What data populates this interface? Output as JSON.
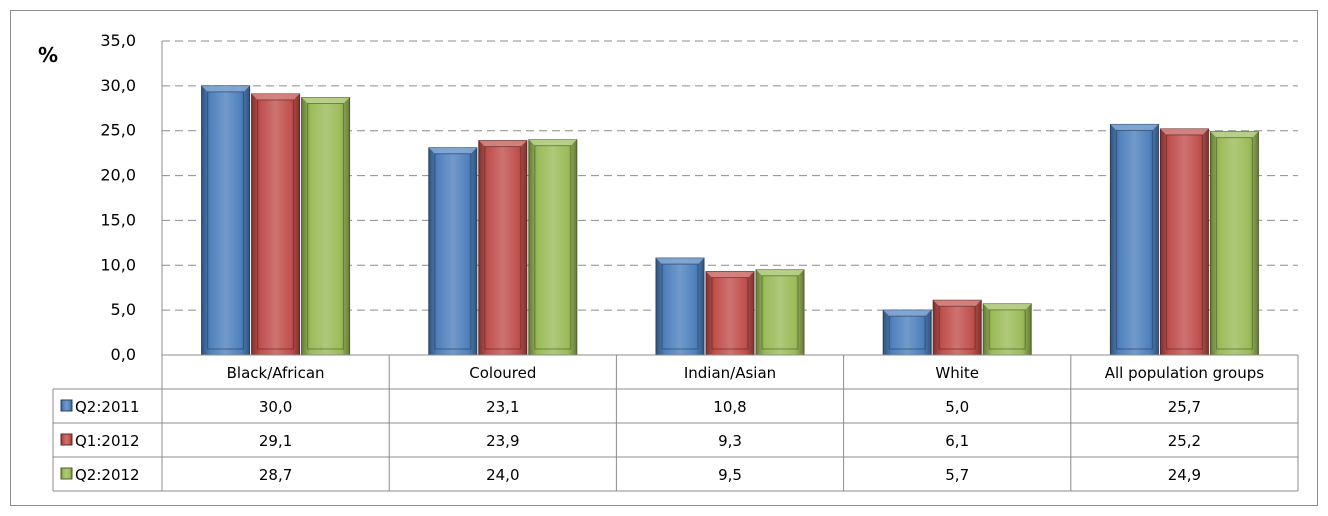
{
  "colors": {
    "Q2:2011": "#4f81bd",
    "Q1:2012": "#c0504d",
    "Q2:2012": "#9bbb59",
    "grid": "#8c8c8c",
    "table_border": "#8c8c8c"
  },
  "chart_data": {
    "type": "bar",
    "y_unit_label": "%",
    "ylim": [
      0,
      35
    ],
    "yticks": [
      "0,0",
      "5,0",
      "10,0",
      "15,0",
      "20,0",
      "25,0",
      "30,0",
      "35,0"
    ],
    "ytick_values": [
      0,
      5,
      10,
      15,
      20,
      25,
      30,
      35
    ],
    "grid": true,
    "legend": "data-table",
    "categories": [
      "Black/African",
      "Coloured",
      "Indian/Asian",
      "White",
      "All population groups"
    ],
    "series": [
      {
        "name": "Q2:2011",
        "values": [
          30.0,
          23.1,
          10.8,
          5.0,
          25.7
        ],
        "labels": [
          "30,0",
          "23,1",
          "10,8",
          "5,0",
          "25,7"
        ]
      },
      {
        "name": "Q1:2012",
        "values": [
          29.1,
          23.9,
          9.3,
          6.1,
          25.2
        ],
        "labels": [
          "29,1",
          "23,9",
          "9,3",
          "6,1",
          "25,2"
        ]
      },
      {
        "name": "Q2:2012",
        "values": [
          28.7,
          24.0,
          9.5,
          5.7,
          24.9
        ],
        "labels": [
          "28,7",
          "24,0",
          "9,5",
          "5,7",
          "24,9"
        ]
      }
    ]
  }
}
